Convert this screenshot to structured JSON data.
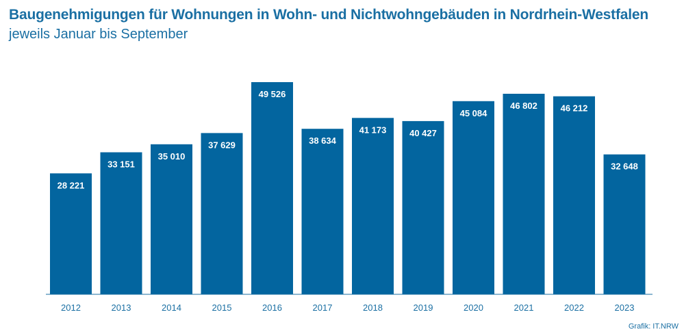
{
  "header": {
    "title": "Baugenehmigungen für Wohnungen in Wohn- und Nichtwohngebäuden in Nordrhein-Westfalen",
    "subtitle": "jeweils Januar bis September"
  },
  "footer": {
    "source": "Grafik: IT.NRW"
  },
  "colors": {
    "bar": "#03659f",
    "label": "#ffffff",
    "axis": "#1a6fa3",
    "title": "#1a6fa3"
  },
  "chart_data": {
    "type": "bar",
    "title": "Baugenehmigungen für Wohnungen in Wohn- und Nichtwohngebäuden in Nordrhein-Westfalen",
    "subtitle": "jeweils Januar bis September",
    "xlabel": "",
    "ylabel": "",
    "grid": false,
    "legend": "none",
    "ylim": [
      0,
      50000
    ],
    "categories": [
      "2012",
      "2013",
      "2014",
      "2015",
      "2016",
      "2017",
      "2018",
      "2019",
      "2020",
      "2021",
      "2022",
      "2023"
    ],
    "values": [
      28221,
      33151,
      35010,
      37629,
      49526,
      38634,
      41173,
      40427,
      45084,
      46802,
      46212,
      32648
    ],
    "value_labels": [
      "28 221",
      "33 151",
      "35 010",
      "37 629",
      "49 526",
      "38 634",
      "41 173",
      "40 427",
      "45 084",
      "46 802",
      "46 212",
      "32 648"
    ]
  }
}
